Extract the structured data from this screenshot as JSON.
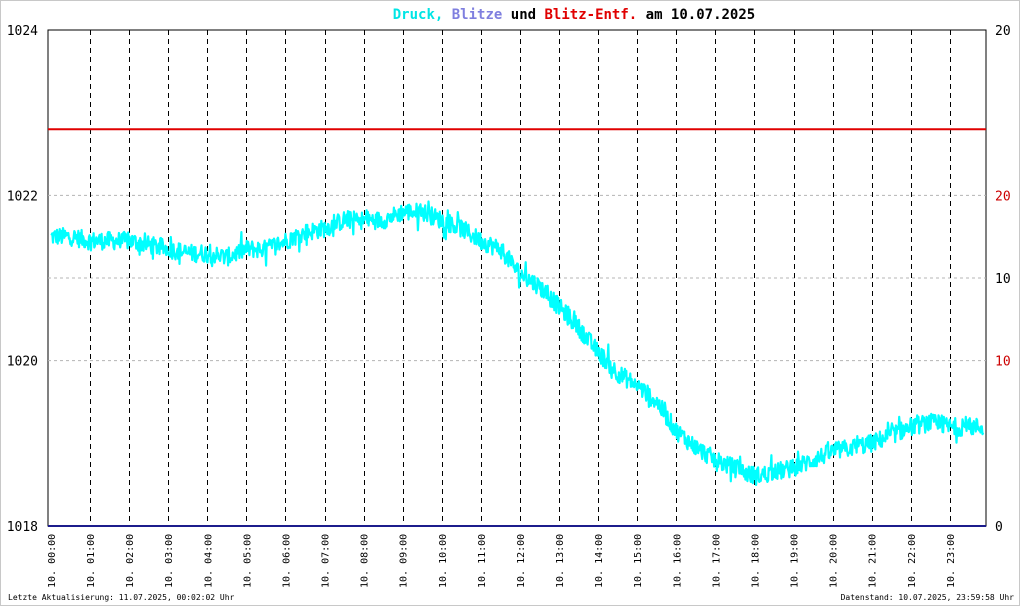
{
  "title": {
    "parts": [
      {
        "text": "Druck,",
        "color": "#00e5e5"
      },
      {
        "text": " Blitze",
        "color": "#7f7fdf"
      },
      {
        "text": " und ",
        "color": "#000000"
      },
      {
        "text": "Blitz-Entf.",
        "color": "#e00000"
      },
      {
        "text": " am 10.07.2025",
        "color": "#000000"
      }
    ]
  },
  "footer": {
    "left": "Letzte Aktualisierung: 11.07.2025, 00:02:02 Uhr",
    "right": "Datenstand: 10.07.2025, 23:59:58 Uhr"
  },
  "colors": {
    "pressure": "#00ffff",
    "lightning_count": "#1c1c8c",
    "lightning_distance": "#e00000",
    "grid_dashed": "#000000",
    "grid_dotted": "#b4b4b4",
    "right_axis_labels": [
      "#000000",
      "#cc0000",
      "#000000",
      "#cc0000",
      "#000000"
    ]
  },
  "chart_data": {
    "type": "line",
    "title": "Druck, Blitze und Blitz-Entf. am 10.07.2025",
    "x_tick_labels": [
      "10. 00:00",
      "10. 01:00",
      "10. 02:00",
      "10. 03:00",
      "10. 04:00",
      "10. 05:00",
      "10. 06:00",
      "10. 07:00",
      "10. 08:00",
      "10. 09:00",
      "10. 10:00",
      "10. 11:00",
      "10. 12:00",
      "10. 13:00",
      "10. 14:00",
      "10. 15:00",
      "10. 16:00",
      "10. 17:00",
      "10. 18:00",
      "10. 19:00",
      "10. 20:00",
      "10. 21:00",
      "10. 22:00",
      "10. 23:00"
    ],
    "x_hours": [
      0,
      1,
      2,
      3,
      4,
      5,
      6,
      7,
      8,
      9,
      10,
      11,
      12,
      13,
      14,
      15,
      16,
      17,
      18,
      19,
      20,
      21,
      22,
      23
    ],
    "x_range": [
      0,
      24
    ],
    "y_left": {
      "range": [
        1018,
        1024
      ],
      "ticks": [
        1018,
        1020,
        1022,
        1024
      ]
    },
    "y_right": {
      "ticks": [
        0,
        10,
        10,
        20,
        20
      ],
      "tick_left_values": [
        1018,
        1020,
        1021,
        1022,
        1024
      ]
    },
    "grid": true,
    "series": [
      {
        "name": "Druck",
        "hours": [
          0,
          0.5,
          1,
          1.5,
          2,
          2.5,
          3,
          3.5,
          4,
          4.5,
          5,
          5.5,
          6,
          6.5,
          7,
          7.5,
          8,
          8.5,
          9,
          9.5,
          10,
          10.5,
          11,
          11.5,
          12,
          12.5,
          13,
          13.5,
          14,
          14.5,
          15,
          15.5,
          16,
          16.5,
          17,
          17.5,
          18,
          18.5,
          19,
          19.5,
          20,
          20.5,
          21,
          21.5,
          22,
          22.5,
          23,
          23.5,
          24
        ],
        "values": [
          1021.5,
          1021.5,
          1021.45,
          1021.45,
          1021.45,
          1021.4,
          1021.35,
          1021.3,
          1021.3,
          1021.25,
          1021.35,
          1021.35,
          1021.45,
          1021.55,
          1021.6,
          1021.7,
          1021.7,
          1021.7,
          1021.8,
          1021.8,
          1021.7,
          1021.6,
          1021.45,
          1021.35,
          1021.05,
          1020.9,
          1020.65,
          1020.4,
          1020.1,
          1019.85,
          1019.7,
          1019.5,
          1019.15,
          1018.95,
          1018.8,
          1018.7,
          1018.6,
          1018.65,
          1018.7,
          1018.8,
          1018.9,
          1018.95,
          1019.0,
          1019.1,
          1019.2,
          1019.25,
          1019.2,
          1019.2,
          1019.2
        ]
      },
      {
        "name": "Blitze",
        "values": [
          0
        ]
      },
      {
        "name": "Blitz-Entf.",
        "value": 1022.8
      }
    ]
  }
}
